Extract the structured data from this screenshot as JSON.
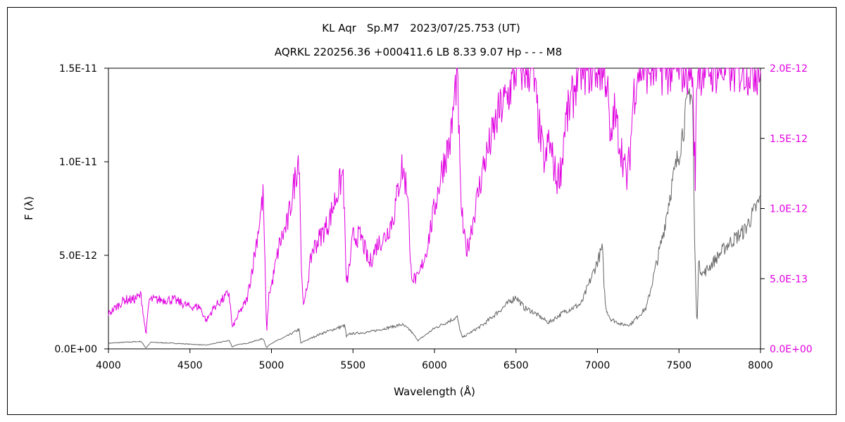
{
  "chart_data": {
    "type": "line",
    "title": "KL Aqr　Sp.M7　2023/07/25.753 (UT)",
    "subtitle": "AQRKL 220256.36 +000411.6 LB 8.33 9.07 Hp - - - M8",
    "xlabel": "Wavelength (Å)",
    "ylabel": "F (λ)",
    "xlim": [
      4000,
      8000
    ],
    "ylim": [
      0,
      1.5e-11
    ],
    "ylim_right": [
      0,
      2e-12
    ],
    "x_ticks": [
      "4000",
      "4500",
      "5000",
      "5500",
      "6000",
      "6500",
      "7000",
      "7500",
      "8000"
    ],
    "y_ticks_left": [
      "0.0E+00",
      "5.0E-12",
      "1.0E-11",
      "1.5E-11"
    ],
    "y_ticks_right": [
      "0.0E+00",
      "5.0E-13",
      "1.0E-12",
      "1.5E-12",
      "2.0E-12"
    ],
    "right_axis_color": "#e000e0",
    "series": [
      {
        "axis": "left",
        "color": "#666666",
        "x": [
          4000,
          4100,
          4200,
          4230,
          4260,
          4400,
          4600,
          4740,
          4760,
          4780,
          4850,
          4950,
          4970,
          4985,
          5000,
          5100,
          5170,
          5180,
          5200,
          5300,
          5450,
          5460,
          5480,
          5600,
          5800,
          5850,
          5900,
          6000,
          6140,
          6150,
          6170,
          6300,
          6500,
          6550,
          6600,
          6700,
          6800,
          6900,
          6980,
          7030,
          7040,
          7050,
          7080,
          7150,
          7200,
          7300,
          7400,
          7450,
          7500,
          7570,
          7585,
          7595,
          7610,
          7620,
          7650,
          7800,
          7900,
          8000
        ],
        "y": [
          3e-13,
          3.5e-13,
          4e-13,
          5e-14,
          3.5e-13,
          3e-13,
          2e-13,
          4.5e-13,
          1e-13,
          2e-13,
          3e-13,
          5.5e-13,
          5e-14,
          2e-13,
          3e-13,
          7e-13,
          1.05e-12,
          3e-13,
          4e-13,
          8e-13,
          1.25e-12,
          6.5e-13,
          8e-13,
          9e-13,
          1.3e-12,
          1e-12,
          4.5e-13,
          1.1e-12,
          1.7e-12,
          1.25e-12,
          6e-13,
          1.3e-12,
          2.8e-12,
          2.2e-12,
          2e-12,
          1.4e-12,
          2e-12,
          2.4e-12,
          4.2e-12,
          5.4e-12,
          3.5e-12,
          2.2e-12,
          1.6e-12,
          1.3e-12,
          1.3e-12,
          2.2e-12,
          6e-12,
          8.5e-12,
          1.05e-11,
          1.4e-11,
          1.3e-11,
          6e-12,
          1e-12,
          4.5e-12,
          4e-12,
          5.6e-12,
          6.3e-12,
          8e-12
        ]
      },
      {
        "axis": "right",
        "color": "#e000e0",
        "x": [
          4000,
          4050,
          4100,
          4150,
          4200,
          4230,
          4250,
          4300,
          4400,
          4500,
          4560,
          4600,
          4650,
          4700,
          4740,
          4760,
          4780,
          4800,
          4850,
          4900,
          4950,
          4970,
          4985,
          5000,
          5050,
          5100,
          5150,
          5170,
          5185,
          5200,
          5250,
          5300,
          5350,
          5400,
          5440,
          5460,
          5480,
          5500,
          5550,
          5600,
          5650,
          5700,
          5750,
          5800,
          5840,
          5850,
          5870,
          5900,
          5950,
          6000,
          6050,
          6100,
          6140,
          6160,
          6180,
          6200,
          6250,
          6300,
          6350,
          6400,
          6450,
          6500,
          6550,
          6600,
          6650,
          6680,
          6700,
          6750,
          6780,
          6800,
          6850,
          6880,
          6900,
          6950,
          7000,
          7020,
          7040,
          7060,
          7080,
          7100,
          7150,
          7180,
          7200,
          7220,
          7250,
          7300,
          7400,
          7500,
          7550,
          7580,
          7600,
          7610,
          7620,
          7650,
          8000
        ],
        "y": [
          2.5e-13,
          3e-13,
          3.5e-13,
          3.5e-13,
          3.8e-13,
          1e-13,
          3.5e-13,
          3.5e-13,
          3.5e-13,
          3e-13,
          3e-13,
          2e-13,
          3e-13,
          3.5e-13,
          4e-13,
          1.5e-13,
          2e-13,
          2.5e-13,
          3.5e-13,
          7e-13,
          1.1e-12,
          1e-13,
          4e-13,
          4.5e-13,
          7.5e-13,
          9e-13,
          1.25e-12,
          1.4e-12,
          5e-13,
          3e-13,
          7e-13,
          8e-13,
          9e-13,
          1.1e-12,
          1.25e-12,
          4.5e-13,
          6e-13,
          8e-13,
          8e-13,
          6e-13,
          7.5e-13,
          8e-13,
          9.5e-13,
          1.3e-12,
          1.1e-12,
          6e-13,
          5e-13,
          5e-13,
          7e-13,
          1e-12,
          1.3e-12,
          1.5e-12,
          2e-12,
          1.1e-12,
          8e-13,
          7e-13,
          1e-12,
          1.3e-12,
          1.5e-12,
          1.7e-12,
          1.8e-12,
          2e-12,
          2e-12,
          2e-12,
          1.5e-12,
          1.3e-12,
          1.5e-12,
          1.2e-12,
          1.3e-12,
          1.6e-12,
          1.8e-12,
          2e-12,
          2e-12,
          2e-12,
          2e-12,
          2e-12,
          2e-12,
          1.9e-12,
          1.4e-12,
          1.7e-12,
          1.4e-12,
          1.2e-12,
          1.4e-12,
          1.8e-12,
          2e-12,
          2e-12,
          2e-12,
          2e-12,
          2e-12,
          2e-12,
          1.2e-12,
          2e-12,
          2e-12,
          2e-12,
          2e-12
        ]
      }
    ]
  }
}
